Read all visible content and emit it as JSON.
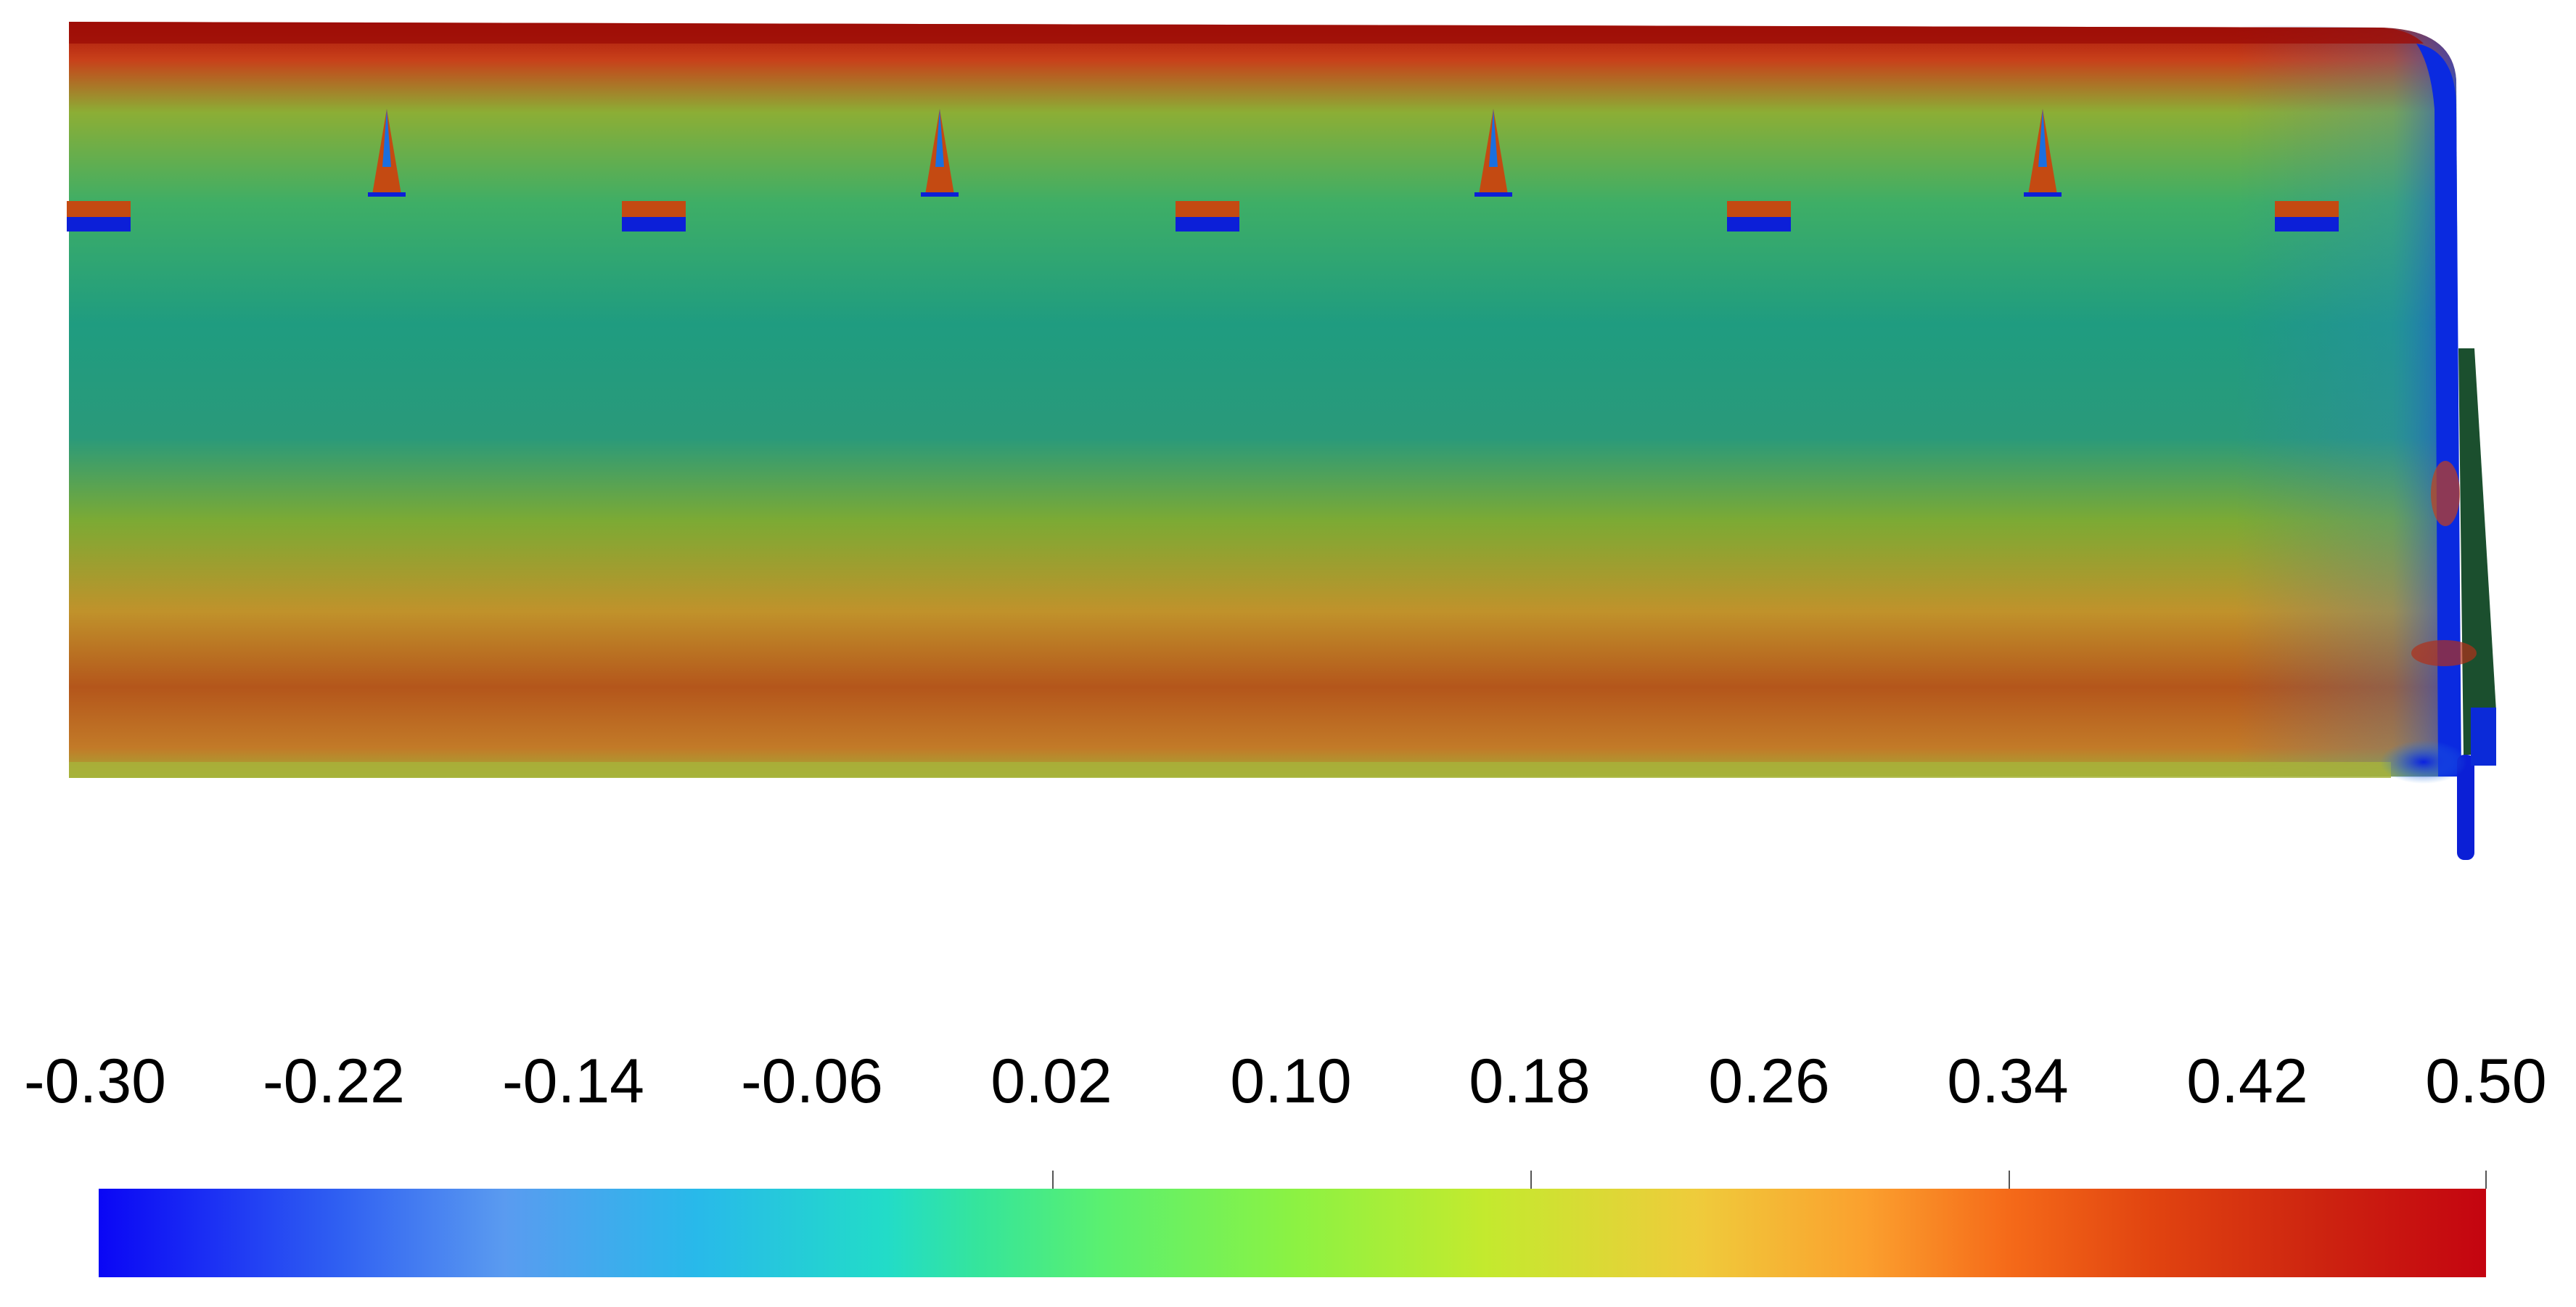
{
  "figure": {
    "description_colors": {
      "low": "#0a06f5",
      "mid": "#8bf243",
      "high": "#c40410"
    },
    "colorbar": {
      "min": -0.3,
      "max": 0.5,
      "ticks": [
        "-0.30",
        "-0.22",
        "-0.14",
        "-0.06",
        "0.02",
        "0.10",
        "0.18",
        "0.26",
        "0.34",
        "0.42",
        "0.50"
      ]
    }
  }
}
